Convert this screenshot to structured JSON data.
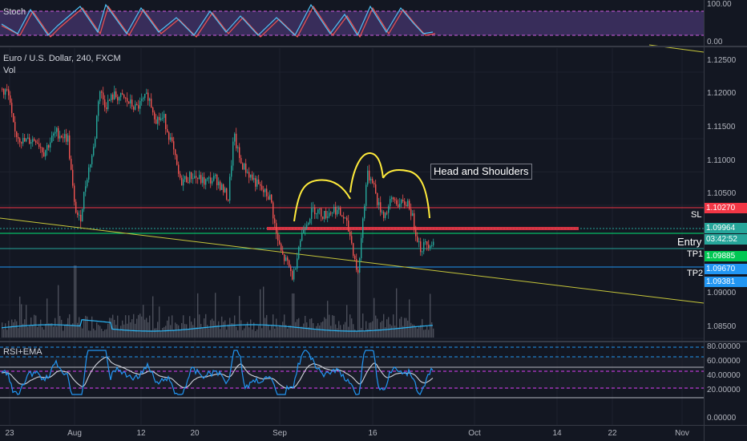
{
  "panes": {
    "stoch": {
      "title": "Stoch",
      "axis": [
        "100.00",
        "0.00"
      ]
    },
    "main": {
      "symbol": "Euro / U.S. Dollar, 240, FXCM",
      "volume_label": "Vol",
      "axis": [
        "1.12500",
        "1.12000",
        "1.11500",
        "1.11000",
        "1.10500",
        "1.09000",
        "1.08500"
      ]
    },
    "rsi": {
      "title": "RSI+EMA",
      "axis": [
        "80.00000",
        "60.00000",
        "40.00000",
        "20.00000",
        "0.00000"
      ]
    }
  },
  "annotation": {
    "text": "Head and Shoulders"
  },
  "levels": {
    "sl": {
      "name": "SL",
      "price": "1.10270",
      "color": "#f23645"
    },
    "current": {
      "price": "1.09964",
      "countdown": "03:42:52",
      "color": "#26a69a"
    },
    "entry": {
      "name": "Entry"
    },
    "tp1": {
      "name": "TP1",
      "price": "1.09885",
      "color": "#00c853"
    },
    "tp1_side": {
      "price": "1.09670",
      "color": "#2196f3"
    },
    "tp2": {
      "name": "TP2",
      "price": "1.09381",
      "color": "#2196f3"
    }
  },
  "time_axis": [
    "23",
    "Aug",
    "12",
    "20",
    "Sep",
    "16",
    "Oct",
    "14",
    "22",
    "Nov"
  ],
  "colors": {
    "up": "#26a69a",
    "down": "#ef5350",
    "background": "#131722"
  }
}
